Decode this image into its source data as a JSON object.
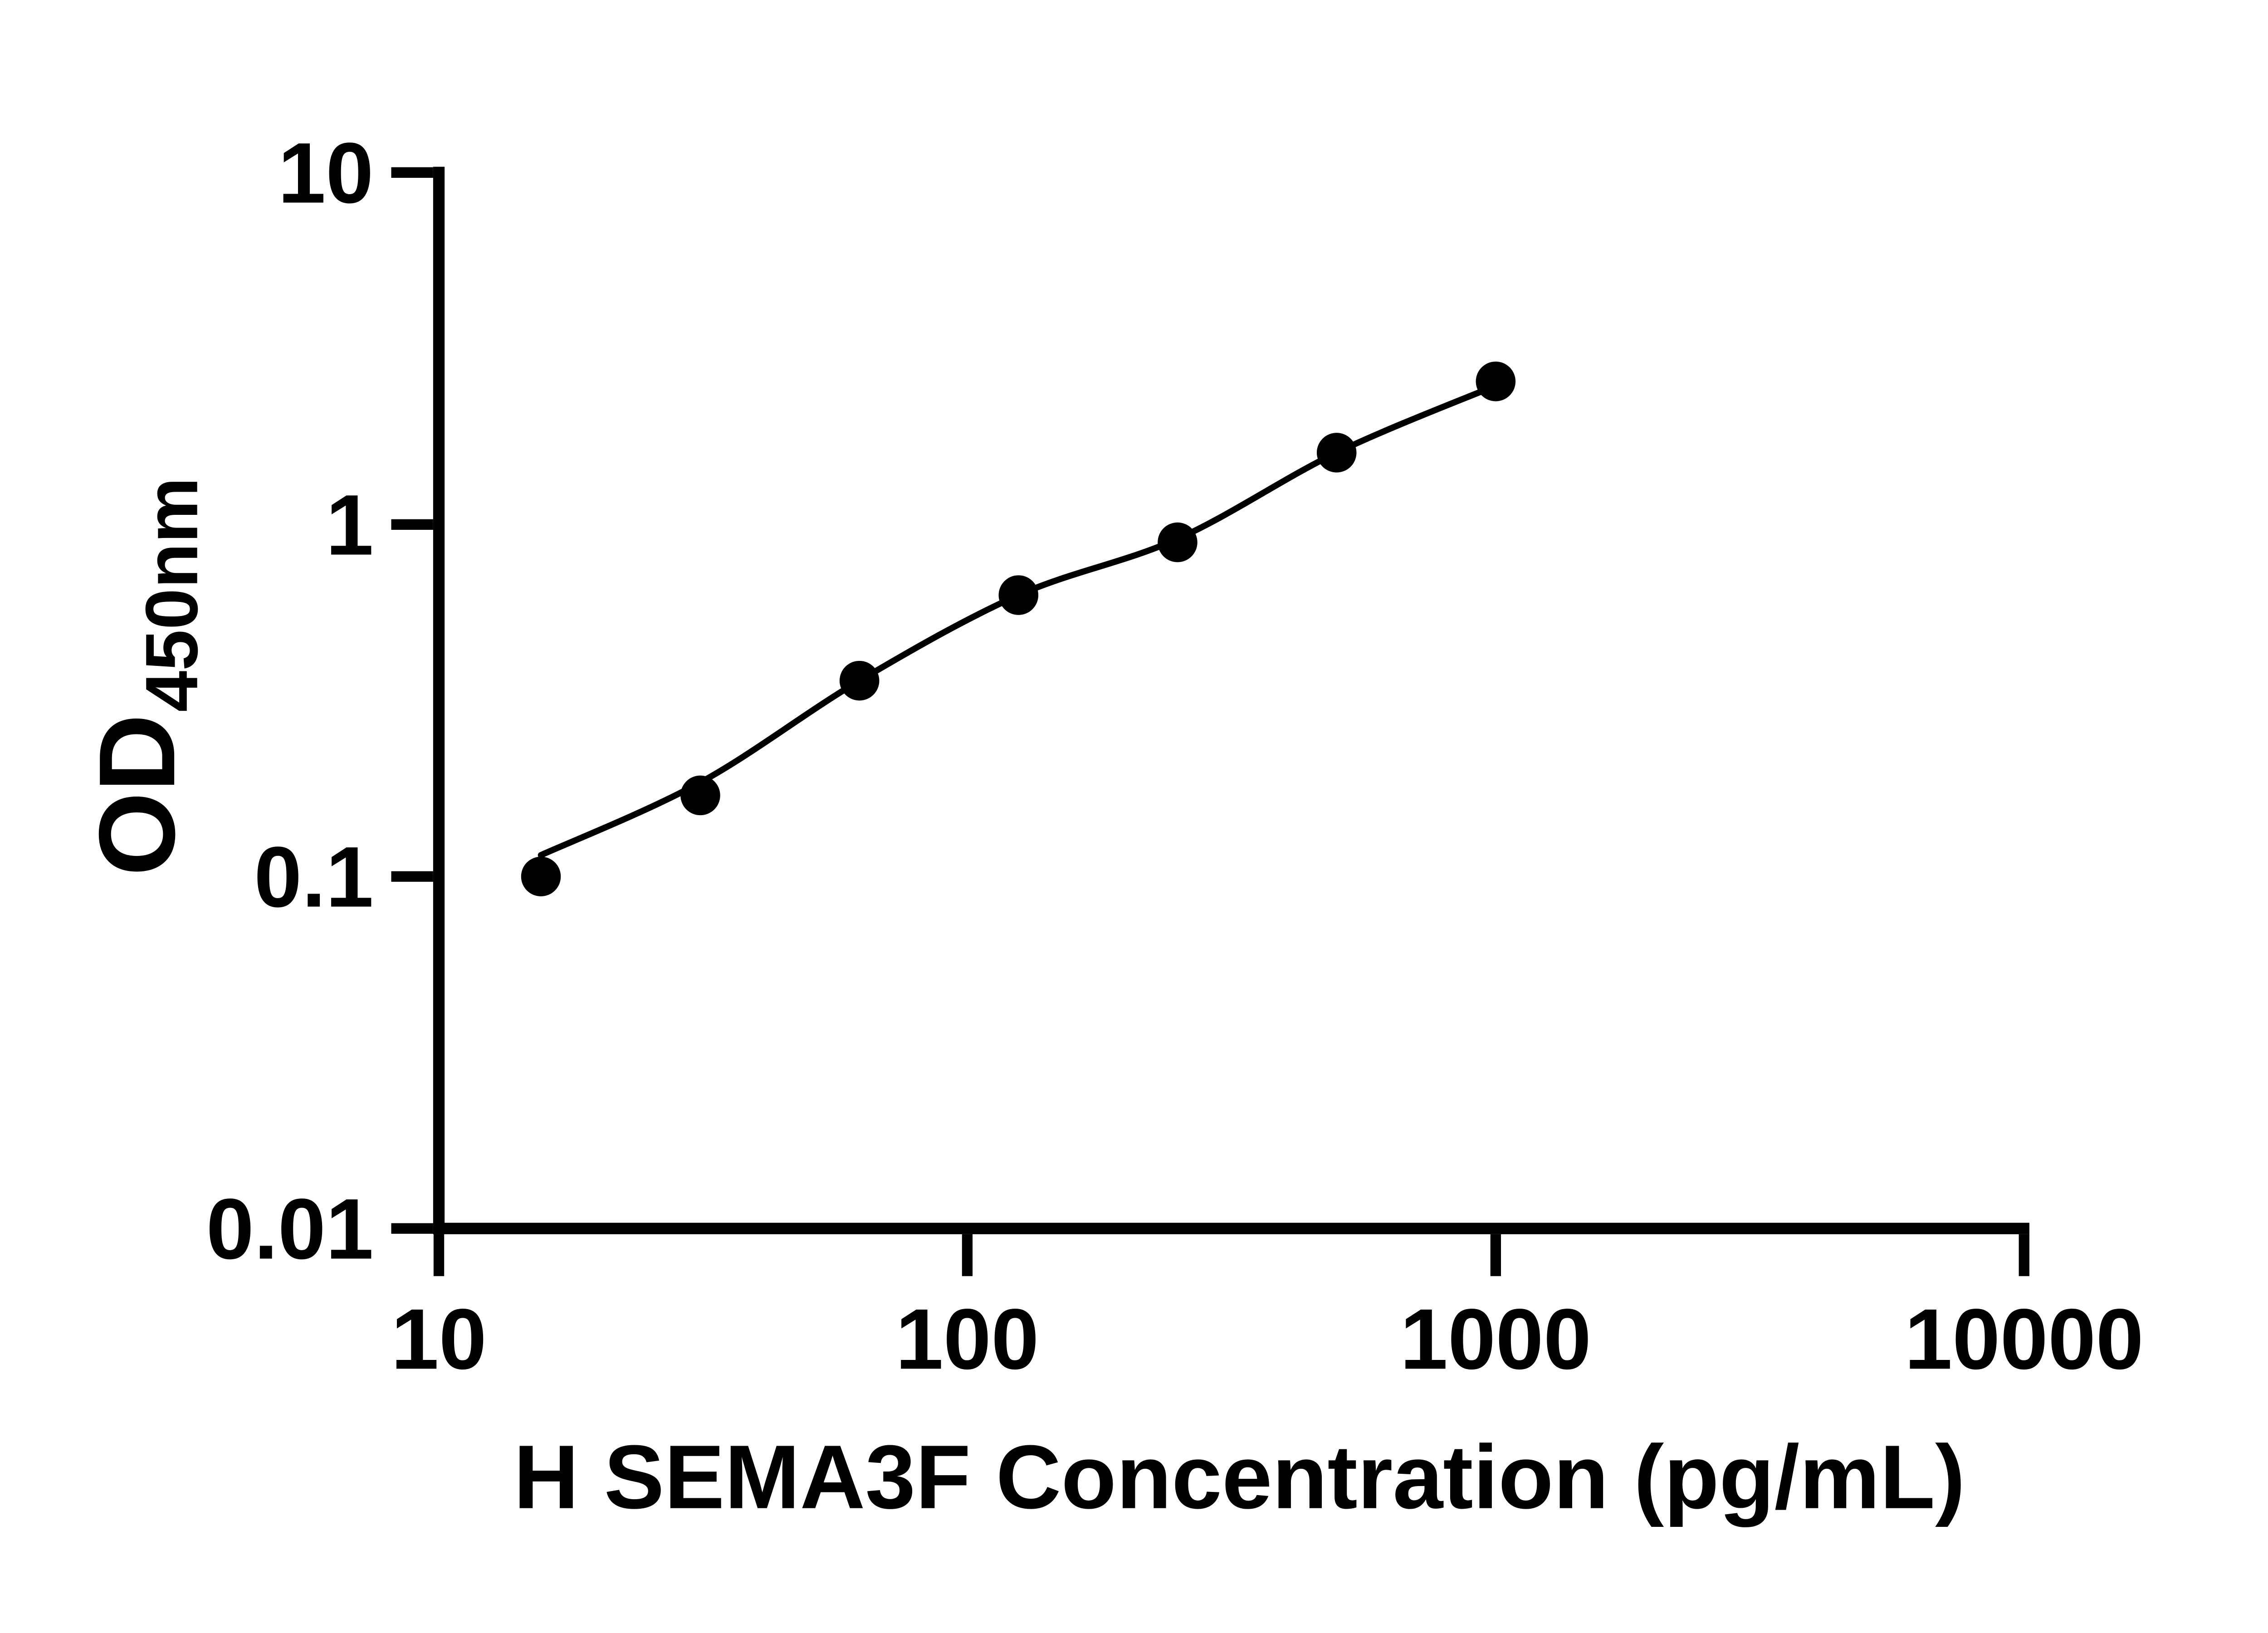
{
  "page": {
    "background_color": "#ffffff",
    "ink_color": "#000000"
  },
  "chart": {
    "x_axis_title": "H SEMA3F Concentration (pg/mL)",
    "y_axis_title_main": "OD",
    "y_axis_title_sub": "450nm",
    "x_tick_labels": [
      "10",
      "100",
      "1000",
      "10000"
    ],
    "y_tick_labels": [
      "10",
      "1",
      "0.1",
      "0.01"
    ]
  },
  "chart_data": {
    "type": "scatter",
    "title": "",
    "xlabel": "H SEMA3F Concentration (pg/mL)",
    "ylabel": "OD450nm",
    "x_scale": "log",
    "y_scale": "log",
    "xlim": [
      10,
      10000
    ],
    "ylim": [
      0.01,
      10
    ],
    "x_ticks": [
      10,
      100,
      1000,
      10000
    ],
    "y_ticks": [
      10,
      1,
      0.1,
      0.01
    ],
    "grid": false,
    "legend": false,
    "marker": {
      "shape": "circle",
      "color": "#000000"
    },
    "line_color": "#000000",
    "series": [
      {
        "name": "standard-points",
        "role": "markers",
        "x": [
          15.6,
          31.25,
          62.5,
          125,
          250,
          500,
          1000
        ],
        "y": [
          0.1,
          0.17,
          0.36,
          0.63,
          0.89,
          1.6,
          2.55
        ]
      },
      {
        "name": "fit-line",
        "role": "line",
        "x": [
          15.6,
          31.25,
          62.5,
          125,
          250,
          500,
          1000
        ],
        "y": [
          0.115,
          0.185,
          0.36,
          0.63,
          0.91,
          1.6,
          2.48
        ]
      }
    ]
  }
}
